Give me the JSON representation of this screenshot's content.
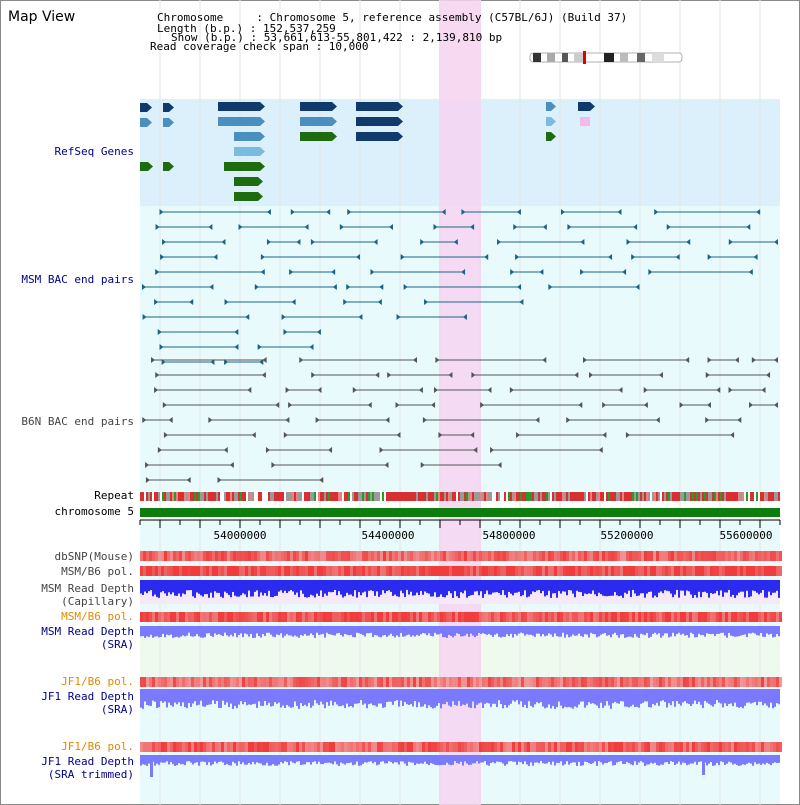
{
  "header": {
    "view_title": "Map View",
    "info_lines": [
      "Chromosome     : Chromosome 5, reference assembly (C57BL/6J) (Build 37)",
      "Length (b.p.) : 152,537,259",
      "Show (b.p.) : 53,661,613-55,801,422 : 2,139,810 bp",
      "Read coverage check span : 10,000"
    ]
  },
  "track_labels": {
    "refseq": "RefSeq Genes",
    "msm_bac": "MSM BAC end pairs",
    "b6n_bac": "B6N BAC end pairs",
    "repeat": "Repeat",
    "chromosome": "chromosome 5",
    "dbsnp": "dbSNP(Mouse)",
    "msm_b6_pol_1": "MSM/B6 pol.",
    "msm_depth_cap_1": "MSM Read Depth",
    "msm_depth_cap_2": "(Capillary)",
    "msm_b6_pol_2": "MSM/B6 pol.",
    "msm_depth_sra_1": "MSM Read Depth",
    "msm_depth_sra_2": "(SRA)",
    "jf1_b6_pol_1": "JF1/B6 pol.",
    "jf1_depth_sra_1": "JF1 Read Depth",
    "jf1_depth_sra_2": "(SRA)",
    "jf1_b6_pol_2": "JF1/B6 pol.",
    "jf1_trim_1": "JF1 Read Depth",
    "jf1_trim_2": "(SRA trimmed)"
  },
  "ruler": {
    "ticks": [
      "54000000",
      "54400000",
      "54800000",
      "55200000",
      "55600000"
    ]
  },
  "colors": {
    "refseq_bg": "#dbf0fa",
    "track_bg": "#e8fafb",
    "msm_sra_bg": "#eefaee",
    "highlight": "#f6d4f0",
    "gene_dark": "#103a6b",
    "gene_mid": "#4a8fbf",
    "gene_light": "#79bcdd",
    "gene_green": "#1e6b10",
    "bac_msm": "#1a6587",
    "bac_b6n": "#555555",
    "chromosome_bar": "#0d7d0d",
    "depth_blue": "#2b2bf0",
    "depth_light": "#7a7aff",
    "pol_red": "#f06060"
  }
}
